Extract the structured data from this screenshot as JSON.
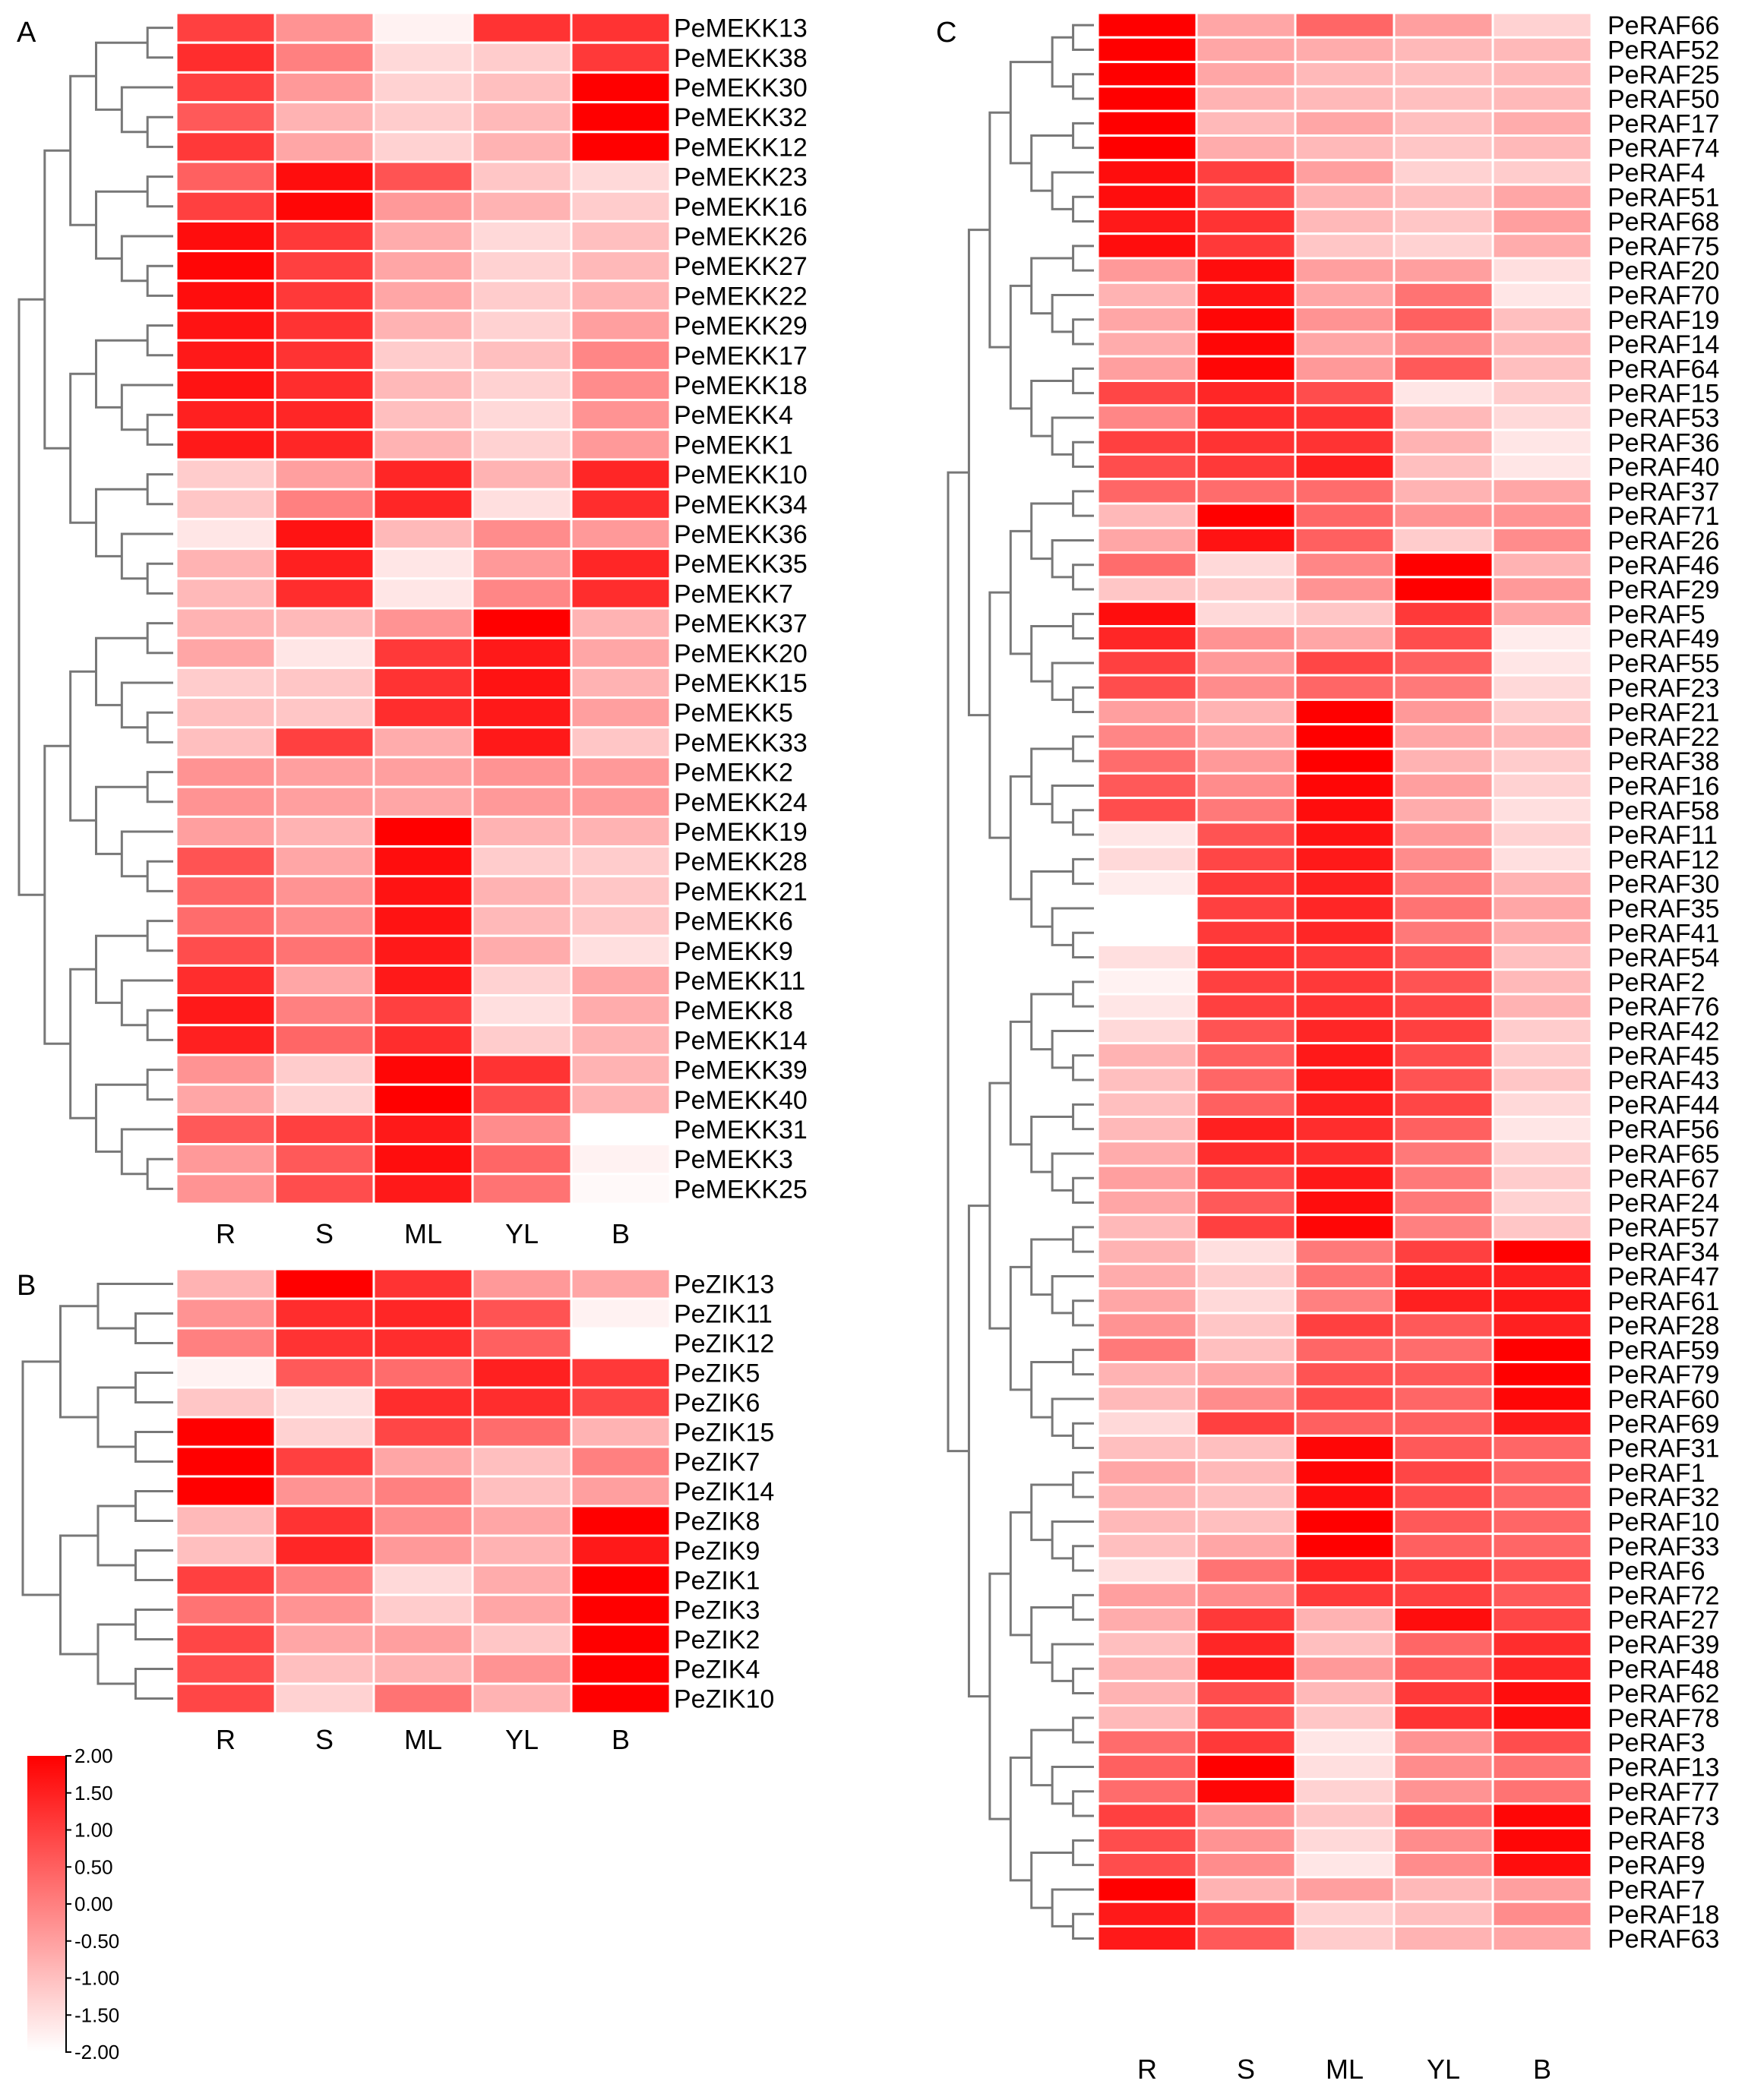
{
  "panels": [
    {
      "id": "A",
      "label": "A",
      "columns": [
        "R",
        "S",
        "ML",
        "YL",
        "B"
      ],
      "genes": [
        "PeMEKK13",
        "PeMEKK38",
        "PeMEKK30",
        "PeMEKK32",
        "PeMEKK12",
        "PeMEKK23",
        "PeMEKK16",
        "PeMEKK26",
        "PeMEKK27",
        "PeMEKK22",
        "PeMEKK29",
        "PeMEKK17",
        "PeMEKK18",
        "PeMEKK4",
        "PeMEKK1",
        "PeMEKK10",
        "PeMEKK34",
        "PeMEKK36",
        "PeMEKK35",
        "PeMEKK7",
        "PeMEKK37",
        "PeMEKK20",
        "PeMEKK15",
        "PeMEKK5",
        "PeMEKK33",
        "PeMEKK2",
        "PeMEKK24",
        "PeMEKK19",
        "PeMEKK28",
        "PeMEKK21",
        "PeMEKK6",
        "PeMEKK9",
        "PeMEKK11",
        "PeMEKK8",
        "PeMEKK14",
        "PeMEKK39",
        "PeMEKK40",
        "PeMEKK31",
        "PeMEKK3",
        "PeMEKK25"
      ],
      "values": [
        [
          1.0,
          -0.3,
          -1.8,
          1.2,
          1.2
        ],
        [
          1.3,
          0.0,
          -1.4,
          -1.2,
          1.1
        ],
        [
          1.0,
          -0.4,
          -1.3,
          -1.0,
          2.0
        ],
        [
          0.6,
          -0.8,
          -1.2,
          -0.9,
          2.0
        ],
        [
          1.1,
          -0.6,
          -1.3,
          -0.8,
          2.0
        ],
        [
          0.5,
          1.8,
          0.7,
          -1.1,
          -1.4
        ],
        [
          1.0,
          1.9,
          -0.4,
          -0.8,
          -1.2
        ],
        [
          1.8,
          1.1,
          -0.7,
          -1.4,
          -1.0
        ],
        [
          1.9,
          1.0,
          -0.6,
          -1.3,
          -0.9
        ],
        [
          1.8,
          1.1,
          -0.6,
          -1.2,
          -0.8
        ],
        [
          1.7,
          1.2,
          -0.8,
          -1.3,
          -0.5
        ],
        [
          1.6,
          1.2,
          -1.2,
          -1.0,
          -0.1
        ],
        [
          1.7,
          1.3,
          -0.9,
          -1.3,
          -0.2
        ],
        [
          1.5,
          1.4,
          -1.0,
          -1.4,
          -0.3
        ],
        [
          1.6,
          1.4,
          -0.8,
          -1.3,
          -0.4
        ],
        [
          -1.2,
          -0.5,
          1.4,
          -0.8,
          1.4
        ],
        [
          -1.1,
          0.0,
          1.4,
          -1.5,
          1.3
        ],
        [
          -1.6,
          1.7,
          -0.9,
          -0.2,
          -0.4
        ],
        [
          -0.8,
          1.5,
          -1.6,
          -0.4,
          1.4
        ],
        [
          -0.9,
          1.3,
          -1.6,
          -0.1,
          1.3
        ],
        [
          -0.8,
          -0.9,
          -0.3,
          2.0,
          -0.8
        ],
        [
          -0.6,
          -1.6,
          1.1,
          1.6,
          -0.6
        ],
        [
          -1.2,
          -1.1,
          1.2,
          1.7,
          -0.8
        ],
        [
          -1.0,
          -1.1,
          1.3,
          1.6,
          -0.5
        ],
        [
          -1.0,
          1.0,
          -0.7,
          1.6,
          -1.1
        ],
        [
          -0.3,
          -0.5,
          -0.5,
          -0.3,
          -0.4
        ],
        [
          -0.3,
          -0.5,
          -0.6,
          -0.4,
          -0.4
        ],
        [
          -0.5,
          -0.8,
          2.0,
          -0.8,
          -0.8
        ],
        [
          0.7,
          -0.6,
          1.8,
          -1.2,
          -1.2
        ],
        [
          0.4,
          -0.3,
          1.7,
          -0.8,
          -1.1
        ],
        [
          0.3,
          -0.2,
          1.7,
          -0.9,
          -1.1
        ],
        [
          0.8,
          0.2,
          1.6,
          -0.7,
          -1.5
        ],
        [
          1.3,
          -0.6,
          1.6,
          -1.3,
          -0.6
        ],
        [
          1.6,
          0.0,
          1.0,
          -1.5,
          -0.7
        ],
        [
          1.5,
          0.4,
          1.3,
          -1.2,
          -0.8
        ],
        [
          -0.3,
          -1.2,
          1.9,
          1.2,
          -0.8
        ],
        [
          -0.6,
          -1.3,
          2.0,
          0.8,
          -0.8
        ],
        [
          0.6,
          1.0,
          1.6,
          -0.2,
          -2.0
        ],
        [
          -0.4,
          0.6,
          1.8,
          0.4,
          -1.8
        ],
        [
          -0.3,
          0.8,
          1.6,
          0.2,
          -1.9
        ]
      ]
    },
    {
      "id": "B",
      "label": "B",
      "columns": [
        "R",
        "S",
        "ML",
        "YL",
        "B"
      ],
      "genes": [
        "PeZIK13",
        "PeZIK11",
        "PeZIK12",
        "PeZIK5",
        "PeZIK6",
        "PeZIK15",
        "PeZIK7",
        "PeZIK14",
        "PeZIK8",
        "PeZIK9",
        "PeZIK1",
        "PeZIK3",
        "PeZIK2",
        "PeZIK4",
        "PeZIK10"
      ],
      "values": [
        [
          -0.8,
          2.0,
          1.2,
          -0.4,
          -0.6
        ],
        [
          -0.3,
          1.3,
          1.4,
          0.7,
          -1.8
        ],
        [
          0.0,
          1.2,
          1.3,
          0.5,
          -2.0
        ],
        [
          -1.8,
          0.6,
          0.3,
          1.5,
          1.1
        ],
        [
          -1.1,
          -1.5,
          1.3,
          1.3,
          0.9
        ],
        [
          2.0,
          -1.3,
          0.9,
          0.3,
          -0.8
        ],
        [
          2.0,
          1.0,
          -0.6,
          -1.0,
          0.0
        ],
        [
          2.0,
          -0.3,
          0.0,
          -1.0,
          -0.5
        ],
        [
          -0.9,
          1.2,
          -0.2,
          -0.6,
          2.0
        ],
        [
          -1.0,
          1.4,
          -0.4,
          -0.8,
          1.6
        ],
        [
          1.0,
          0.0,
          -1.4,
          -0.7,
          2.0
        ],
        [
          0.2,
          -0.3,
          -1.2,
          -0.6,
          2.0
        ],
        [
          0.9,
          -0.6,
          -0.5,
          -1.1,
          2.0
        ],
        [
          0.8,
          -1.0,
          -0.8,
          -0.3,
          2.0
        ],
        [
          0.9,
          -1.3,
          0.2,
          -0.8,
          2.0
        ]
      ]
    },
    {
      "id": "C",
      "label": "C",
      "columns": [
        "R",
        "S",
        "ML",
        "YL",
        "B"
      ],
      "genes": [
        "PeRAF66",
        "PeRAF52",
        "PeRAF25",
        "PeRAF50",
        "PeRAF17",
        "PeRAF74",
        "PeRAF4",
        "PeRAF51",
        "PeRAF68",
        "PeRAF75",
        "PeRAF20",
        "PeRAF70",
        "PeRAF19",
        "PeRAF14",
        "PeRAF64",
        "PeRAF15",
        "PeRAF53",
        "PeRAF36",
        "PeRAF40",
        "PeRAF37",
        "PeRAF71",
        "PeRAF26",
        "PeRAF46",
        "PeRAF29",
        "PeRAF5",
        "PeRAF49",
        "PeRAF55",
        "PeRAF23",
        "PeRAF21",
        "PeRAF22",
        "PeRAF38",
        "PeRAF16",
        "PeRAF58",
        "PeRAF11",
        "PeRAF12",
        "PeRAF30",
        "PeRAF35",
        "PeRAF41",
        "PeRAF54",
        "PeRAF2",
        "PeRAF76",
        "PeRAF42",
        "PeRAF45",
        "PeRAF43",
        "PeRAF44",
        "PeRAF56",
        "PeRAF65",
        "PeRAF67",
        "PeRAF24",
        "PeRAF57",
        "PeRAF34",
        "PeRAF47",
        "PeRAF61",
        "PeRAF28",
        "PeRAF59",
        "PeRAF79",
        "PeRAF60",
        "PeRAF69",
        "PeRAF31",
        "PeRAF1",
        "PeRAF32",
        "PeRAF10",
        "PeRAF33",
        "PeRAF6",
        "PeRAF72",
        "PeRAF27",
        "PeRAF39",
        "PeRAF48",
        "PeRAF62",
        "PeRAF78",
        "PeRAF3",
        "PeRAF13",
        "PeRAF77",
        "PeRAF73",
        "PeRAF8",
        "PeRAF9",
        "PeRAF7",
        "PeRAF18",
        "PeRAF63"
      ],
      "values": [
        [
          2.0,
          -0.6,
          0.4,
          -0.5,
          -1.3
        ],
        [
          2.0,
          -0.6,
          -0.7,
          -0.9,
          -0.9
        ],
        [
          2.0,
          -0.6,
          -0.9,
          -1.0,
          -0.9
        ],
        [
          2.0,
          -0.8,
          -0.9,
          -1.0,
          -0.9
        ],
        [
          2.0,
          -0.9,
          -0.6,
          -1.0,
          -0.7
        ],
        [
          2.0,
          -0.7,
          -0.9,
          -1.1,
          -0.9
        ],
        [
          1.8,
          1.0,
          -0.5,
          -1.3,
          -1.2
        ],
        [
          1.8,
          0.8,
          -0.8,
          -1.0,
          -0.6
        ],
        [
          1.6,
          1.2,
          -0.9,
          -1.1,
          -0.5
        ],
        [
          1.8,
          1.1,
          -1.1,
          -1.3,
          -0.7
        ],
        [
          -0.4,
          1.8,
          -0.5,
          -0.5,
          -1.5
        ],
        [
          -0.8,
          1.7,
          -0.6,
          0.2,
          -1.6
        ],
        [
          -0.6,
          1.9,
          -0.3,
          0.5,
          -1.0
        ],
        [
          -0.7,
          1.9,
          -0.6,
          -0.2,
          -0.9
        ],
        [
          -0.5,
          1.9,
          -0.4,
          0.6,
          -1.0
        ],
        [
          0.9,
          1.4,
          0.8,
          -1.6,
          -1.2
        ],
        [
          -0.1,
          1.3,
          1.2,
          -0.9,
          -1.4
        ],
        [
          1.0,
          1.2,
          1.2,
          -0.8,
          -1.6
        ],
        [
          0.8,
          1.1,
          1.5,
          -1.0,
          -1.6
        ],
        [
          0.4,
          0.3,
          0.3,
          -0.8,
          -0.6
        ],
        [
          -0.9,
          2.0,
          0.4,
          -0.3,
          -0.3
        ],
        [
          -0.6,
          1.7,
          0.5,
          -1.2,
          -0.2
        ],
        [
          0.3,
          -1.4,
          -0.1,
          2.0,
          -0.8
        ],
        [
          -1.1,
          -1.2,
          -0.3,
          2.0,
          -0.4
        ],
        [
          1.8,
          -1.4,
          -1.1,
          1.1,
          -0.6
        ],
        [
          1.4,
          -0.3,
          -0.6,
          0.8,
          -1.7
        ],
        [
          1.0,
          -0.4,
          0.9,
          0.5,
          -1.6
        ],
        [
          0.8,
          -0.2,
          0.4,
          0.1,
          -1.4
        ],
        [
          -0.5,
          -0.8,
          2.0,
          -0.4,
          -1.2
        ],
        [
          -0.1,
          -0.6,
          2.0,
          -0.6,
          -0.9
        ],
        [
          0.3,
          -0.4,
          2.0,
          -0.8,
          -1.2
        ],
        [
          0.6,
          -0.2,
          1.9,
          -0.5,
          -1.3
        ],
        [
          0.8,
          0.1,
          1.8,
          -0.7,
          -1.5
        ],
        [
          -1.6,
          0.7,
          1.7,
          -0.4,
          -1.3
        ],
        [
          -1.4,
          0.9,
          1.6,
          -0.2,
          -1.5
        ],
        [
          -1.7,
          1.1,
          1.5,
          0.0,
          -0.8
        ],
        [
          -2.0,
          1.0,
          1.4,
          0.2,
          -0.6
        ],
        [
          -2.0,
          1.1,
          1.4,
          0.1,
          -0.7
        ],
        [
          -1.5,
          1.2,
          1.1,
          0.6,
          -1.0
        ],
        [
          -1.8,
          1.0,
          1.1,
          0.7,
          -0.9
        ],
        [
          -1.6,
          1.0,
          1.2,
          0.9,
          -0.8
        ],
        [
          -1.4,
          0.7,
          1.4,
          1.0,
          -1.2
        ],
        [
          -0.8,
          0.5,
          1.6,
          0.8,
          -1.2
        ],
        [
          -1.0,
          0.4,
          1.6,
          0.7,
          -1.1
        ],
        [
          -1.0,
          0.5,
          1.5,
          0.9,
          -1.4
        ],
        [
          -0.9,
          1.5,
          1.3,
          0.5,
          -1.6
        ],
        [
          -0.7,
          1.3,
          1.3,
          0.1,
          -1.3
        ],
        [
          -0.5,
          0.8,
          1.6,
          0.1,
          -1.2
        ],
        [
          -0.6,
          0.6,
          1.8,
          0.1,
          -1.3
        ],
        [
          -0.9,
          1.0,
          1.9,
          0.0,
          -1.1
        ],
        [
          -0.8,
          -1.5,
          0.1,
          1.0,
          2.0
        ],
        [
          -0.7,
          -1.2,
          0.2,
          1.4,
          1.5
        ],
        [
          -0.6,
          -1.4,
          0.0,
          1.5,
          1.6
        ],
        [
          -0.3,
          -1.1,
          1.0,
          0.6,
          1.5
        ],
        [
          0.1,
          -1.0,
          0.4,
          0.3,
          2.0
        ],
        [
          -0.8,
          -0.6,
          0.7,
          0.6,
          2.0
        ],
        [
          -0.9,
          -0.2,
          0.8,
          0.4,
          1.9
        ],
        [
          -1.4,
          1.0,
          0.5,
          0.5,
          1.6
        ],
        [
          -1.0,
          -1.0,
          1.9,
          0.6,
          0.4
        ],
        [
          -0.6,
          -0.9,
          1.9,
          0.9,
          0.4
        ],
        [
          -0.8,
          -1.0,
          1.8,
          0.8,
          0.4
        ],
        [
          -0.9,
          -1.0,
          2.0,
          0.6,
          0.4
        ],
        [
          -1.0,
          -0.6,
          2.0,
          0.5,
          0.4
        ],
        [
          -1.5,
          0.2,
          1.4,
          1.0,
          0.7
        ],
        [
          -0.5,
          -0.2,
          1.1,
          1.0,
          0.6
        ],
        [
          -0.7,
          1.1,
          -0.8,
          1.8,
          0.9
        ],
        [
          -1.0,
          1.4,
          -1.0,
          0.4,
          1.3
        ],
        [
          -0.8,
          1.6,
          -0.4,
          0.6,
          1.4
        ],
        [
          -0.8,
          0.8,
          -0.9,
          1.1,
          1.8
        ],
        [
          -0.9,
          0.7,
          -1.1,
          1.2,
          1.8
        ],
        [
          0.3,
          1.1,
          -1.6,
          -0.3,
          0.8
        ],
        [
          0.5,
          2.0,
          -1.5,
          -0.2,
          0.2
        ],
        [
          0.3,
          1.9,
          -1.3,
          -0.3,
          0.2
        ],
        [
          1.0,
          -0.3,
          -1.1,
          0.4,
          1.9
        ],
        [
          0.8,
          -0.3,
          -1.4,
          -0.2,
          1.9
        ],
        [
          0.8,
          -0.2,
          -1.6,
          -0.2,
          1.8
        ],
        [
          2.0,
          -0.8,
          -0.5,
          -0.9,
          -0.5
        ],
        [
          1.6,
          0.5,
          -1.3,
          -1.0,
          -0.2
        ],
        [
          1.6,
          0.6,
          -1.2,
          -0.8,
          -0.6
        ]
      ]
    }
  ],
  "legend": {
    "ticks": [
      "2.00",
      "1.50",
      "1.00",
      "0.50",
      "0.00",
      "-0.50",
      "-1.00",
      "-1.50",
      "-2.00"
    ],
    "range": [
      -2,
      2
    ],
    "color_high": "#ff0000",
    "color_low": "#ffffff"
  },
  "chart_data": [
    {
      "type": "heatmap",
      "title": "A",
      "categories": [
        "R",
        "S",
        "ML",
        "YL",
        "B"
      ],
      "range": [
        -2,
        2
      ],
      "note": "values in panels[0]"
    },
    {
      "type": "heatmap",
      "title": "B",
      "categories": [
        "R",
        "S",
        "ML",
        "YL",
        "B"
      ],
      "range": [
        -2,
        2
      ],
      "note": "values in panels[1]"
    },
    {
      "type": "heatmap",
      "title": "C",
      "categories": [
        "R",
        "S",
        "ML",
        "YL",
        "B"
      ],
      "range": [
        -2,
        2
      ],
      "note": "values in panels[2]"
    }
  ]
}
